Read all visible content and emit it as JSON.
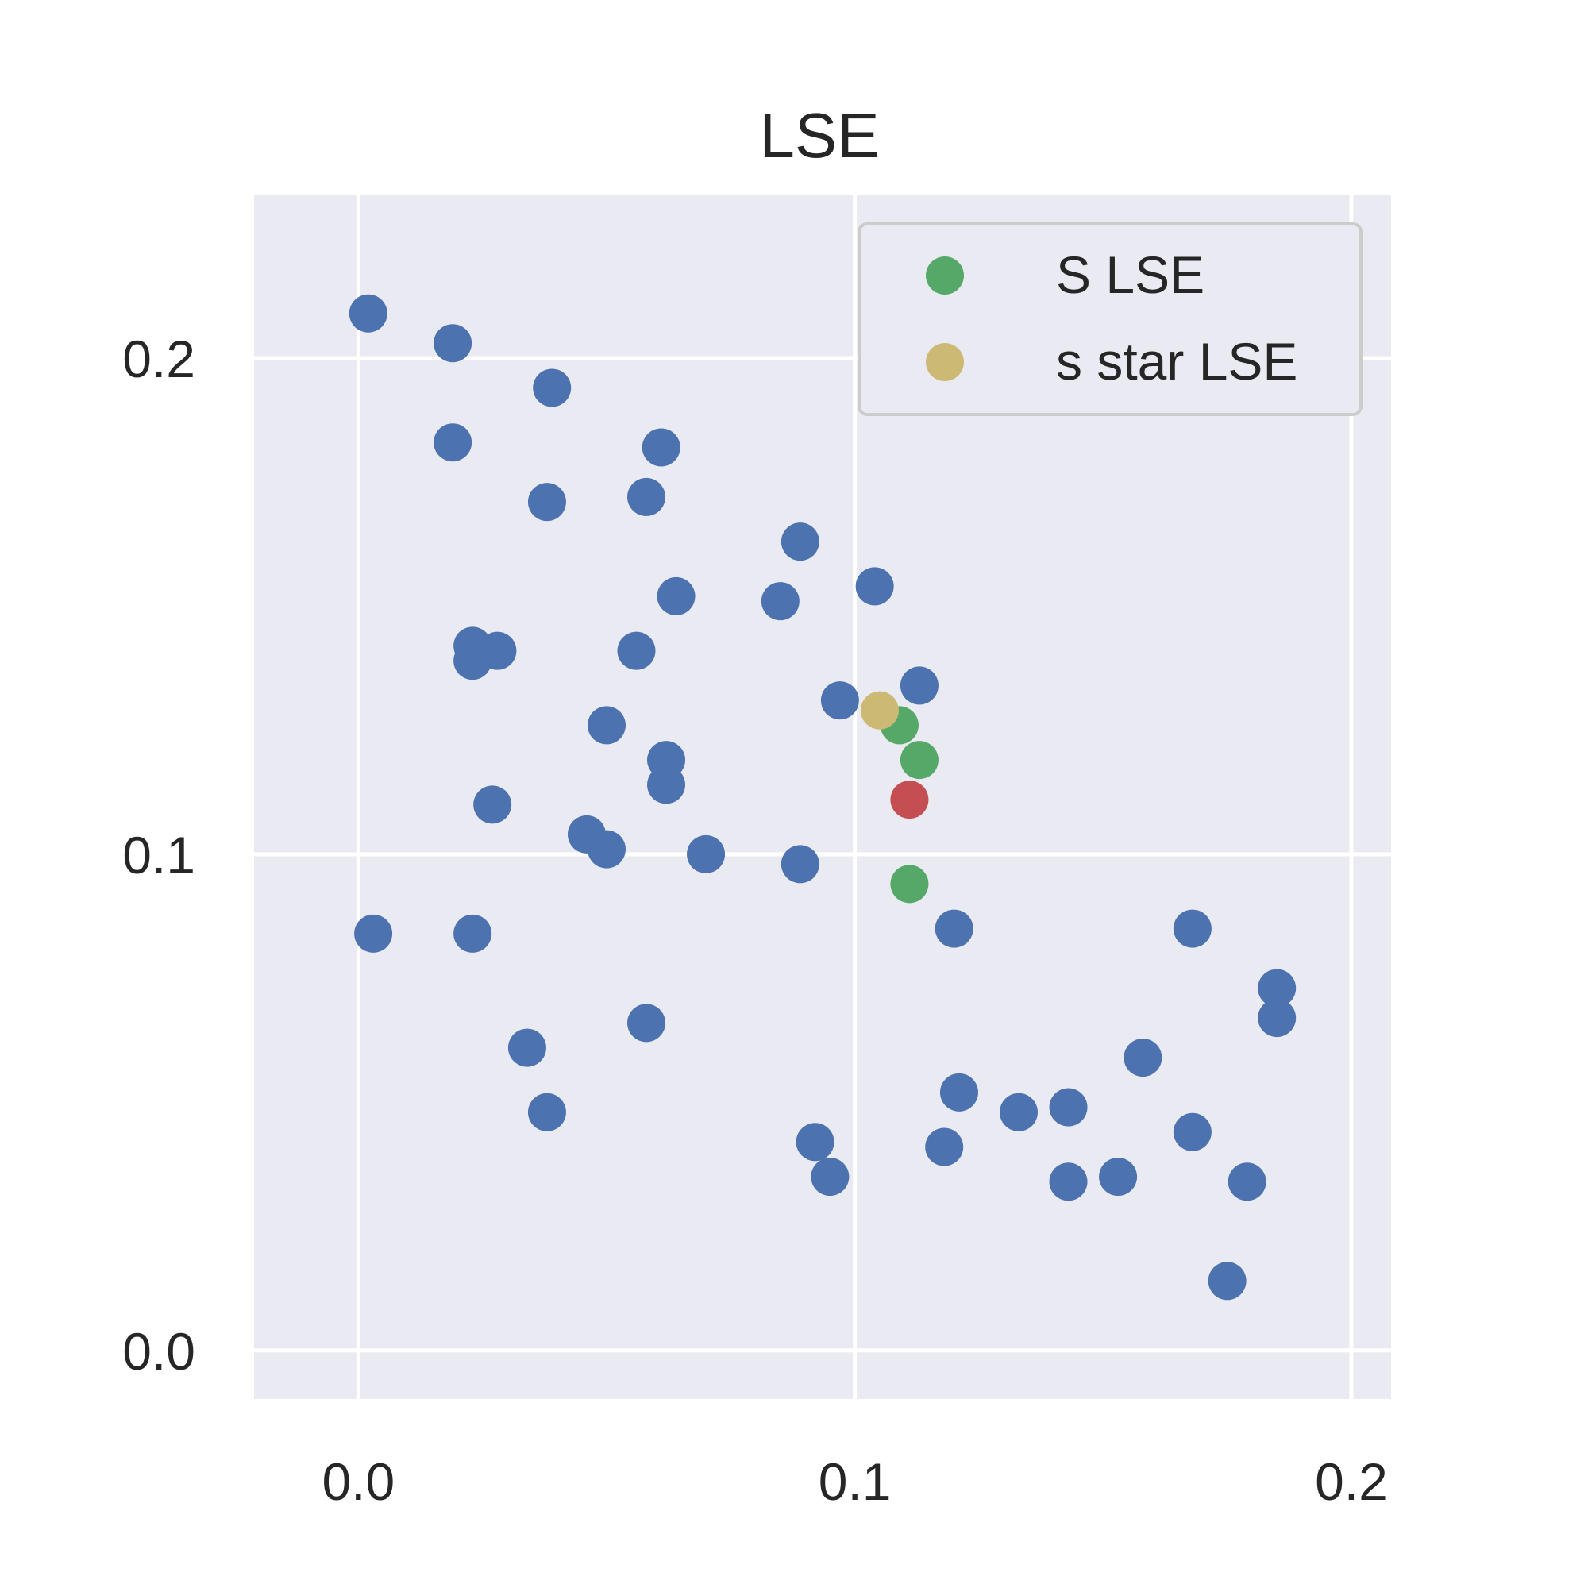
{
  "chart_data": {
    "type": "scatter",
    "title": "LSE",
    "xlabel": "",
    "ylabel": "",
    "xlim": [
      -0.021,
      0.208
    ],
    "ylim": [
      -0.0098,
      0.2328
    ],
    "xticks": [
      0.0,
      0.1,
      0.2
    ],
    "yticks": [
      0.0,
      0.1,
      0.2
    ],
    "xtick_labels": [
      "0.0",
      "0.1",
      "0.2"
    ],
    "ytick_labels": [
      "0.0",
      "0.1",
      "0.2"
    ],
    "grid": true,
    "legend_position": "top-right",
    "colors": {
      "background": "#eaeaf2",
      "grid": "#ffffff",
      "points": "#4c72b0",
      "s_lse": "#55a868",
      "s_star_lse": "#ccb974",
      "highlight": "#c44e52"
    },
    "series": [
      {
        "key": "points",
        "color": "#4c72b0",
        "x": [
          0.002,
          0.019,
          0.039,
          0.019,
          0.061,
          0.038,
          0.058,
          0.089,
          0.104,
          0.064,
          0.085,
          0.023,
          0.028,
          0.023,
          0.056,
          0.113,
          0.097,
          0.05,
          0.062,
          0.062,
          0.027,
          0.046,
          0.05,
          0.07,
          0.089,
          0.003,
          0.023,
          0.12,
          0.168,
          0.185,
          0.185,
          0.034,
          0.058,
          0.121,
          0.158,
          0.133,
          0.143,
          0.038,
          0.092,
          0.118,
          0.168,
          0.095,
          0.143,
          0.153,
          0.179,
          0.175
        ],
        "y": [
          0.209,
          0.203,
          0.194,
          0.183,
          0.182,
          0.171,
          0.172,
          0.163,
          0.154,
          0.152,
          0.151,
          0.142,
          0.141,
          0.139,
          0.141,
          0.134,
          0.131,
          0.126,
          0.119,
          0.114,
          0.11,
          0.104,
          0.101,
          0.1,
          0.098,
          0.084,
          0.084,
          0.085,
          0.085,
          0.073,
          0.067,
          0.061,
          0.066,
          0.052,
          0.059,
          0.048,
          0.049,
          0.048,
          0.042,
          0.041,
          0.044,
          0.035,
          0.034,
          0.035,
          0.034,
          0.014
        ]
      },
      {
        "key": "s_lse",
        "name": "S LSE",
        "color": "#55a868",
        "x": [
          0.109,
          0.113,
          0.111
        ],
        "y": [
          0.126,
          0.119,
          0.094
        ]
      },
      {
        "key": "highlight",
        "color": "#c44e52",
        "x": [
          0.111
        ],
        "y": [
          0.111
        ]
      },
      {
        "key": "s_star_lse",
        "name": "s star LSE",
        "color": "#ccb974",
        "x": [
          0.105
        ],
        "y": [
          0.129
        ]
      }
    ],
    "legend": [
      {
        "label": "S LSE",
        "color": "#55a868"
      },
      {
        "label": "s star LSE",
        "color": "#ccb974"
      }
    ]
  }
}
